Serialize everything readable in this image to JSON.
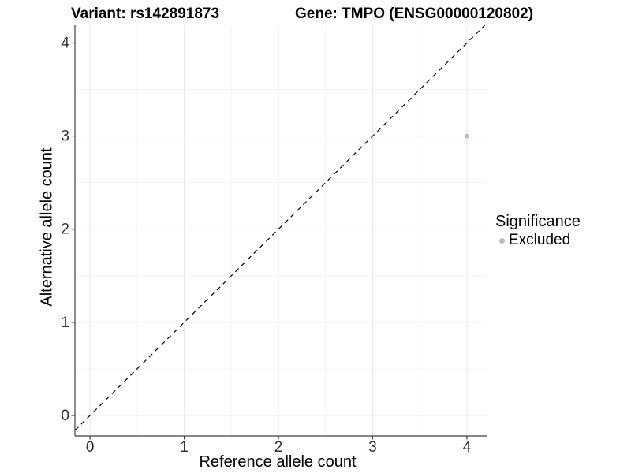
{
  "chart_data": {
    "type": "scatter",
    "title_left": "Variant: rs142891873",
    "title_right": "Gene: TMPO (ENSG00000120802)",
    "xlabel": "Reference allele count",
    "ylabel": "Alternative allele count",
    "xlim": [
      -0.16,
      4.21
    ],
    "ylim": [
      -0.22,
      4.19
    ],
    "x_ticks": [
      0,
      1,
      2,
      3,
      4
    ],
    "y_ticks": [
      0,
      1,
      2,
      3,
      4
    ],
    "x_minor_ticks": [
      0.5,
      1.5,
      2.5,
      3.5
    ],
    "y_minor_ticks": [
      0.5,
      1.5,
      2.5,
      3.5
    ],
    "grid": {
      "major": true,
      "minor": true
    },
    "reference_line": {
      "type": "identity y=x",
      "style": "dashed",
      "color": "#000000"
    },
    "points": [
      {
        "x": 4,
        "y": 3,
        "series": "Excluded",
        "color": "#bdbdbd",
        "radius": 3
      }
    ],
    "legend": {
      "title": "Significance",
      "position": "right",
      "entries": [
        {
          "label": "Excluded",
          "color": "#bdbdbd",
          "marker": "circle"
        }
      ]
    },
    "colors": {
      "background": "#ffffff",
      "grid_major": "#e9e9e9",
      "grid_minor": "#f4f4f4",
      "axis_line": "#404040",
      "tick_mark": "#404040",
      "tick_label": "#303030",
      "text": "#000000",
      "point": "#bdbdbd"
    }
  }
}
